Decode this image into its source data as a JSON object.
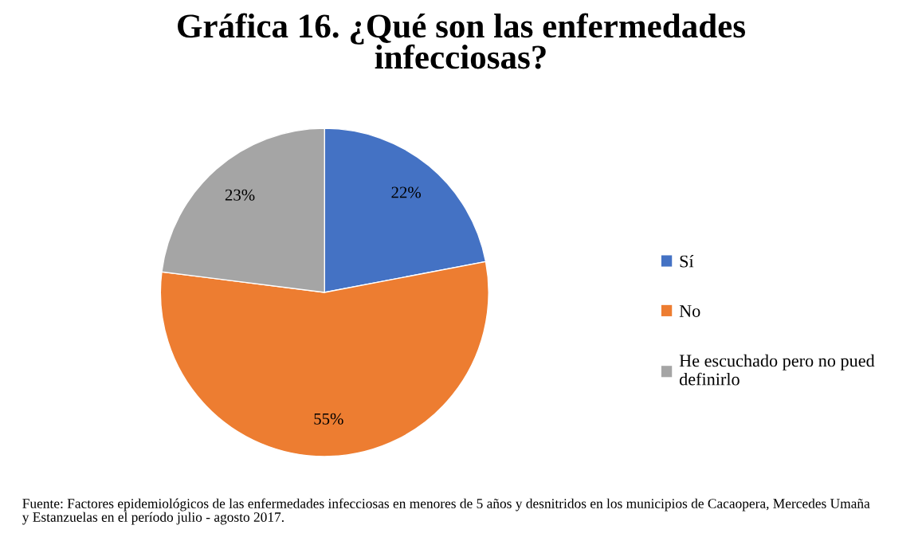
{
  "chart_data": {
    "type": "pie",
    "title": "Gráfica 16. ¿Qué son las enfermedades infecciosas?",
    "categories": [
      "Sí",
      "No",
      "He escuchado pero no pued definirlo"
    ],
    "values": [
      22,
      55,
      23
    ],
    "colors": [
      "#4472c4",
      "#ed7d31",
      "#a5a5a5"
    ],
    "value_labels": [
      "22%",
      "55%",
      "23%"
    ],
    "legend": "right",
    "annotations": [
      "Fuente: Factores epidemiológicos de las enfermedades infecciosas en menores de 5 años y desnitridos en los municipios de Cacaopera, Mercedes Umaña y Estanzuelas en el período julio - agosto 2017."
    ]
  }
}
